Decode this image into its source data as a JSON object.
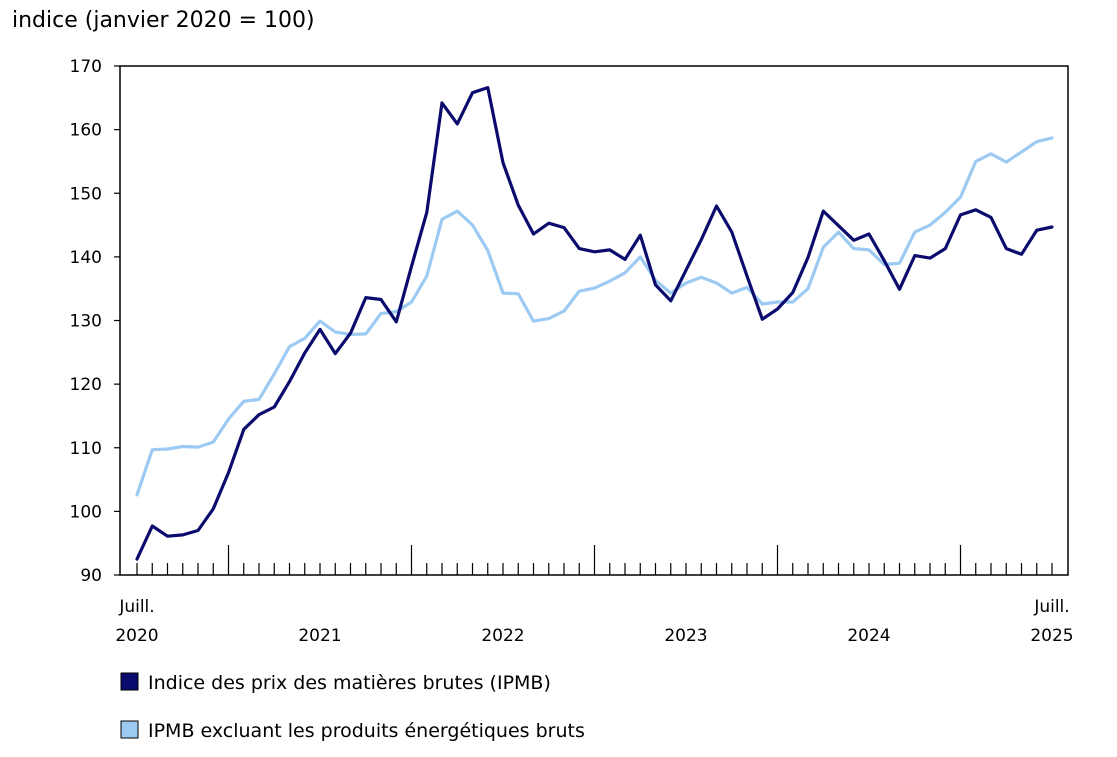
{
  "chart_data": {
    "type": "line",
    "ylabel": "indice (janvier 2020 = 100)",
    "ylim": [
      90,
      170
    ],
    "yticks": [
      90,
      100,
      110,
      120,
      130,
      140,
      150,
      160,
      170
    ],
    "x_start": "2020-07",
    "x_end": "2025-07",
    "x_labels": [
      {
        "month_index": 0,
        "line1": "Juill.",
        "line2": "2020"
      },
      {
        "month_index": 12,
        "line1": "",
        "line2": "2021"
      },
      {
        "month_index": 24,
        "line1": "",
        "line2": "2022"
      },
      {
        "month_index": 36,
        "line1": "",
        "line2": "2023"
      },
      {
        "month_index": 48,
        "line1": "",
        "line2": "2024"
      },
      {
        "month_index": 60,
        "line1": "Juill.",
        "line2": "2025"
      }
    ],
    "major_tick_indices": [
      6,
      18,
      30,
      42,
      54
    ],
    "series": [
      {
        "name": "Indice des prix des matières brutes (IPMB)",
        "color": "#0b0b6e",
        "values": [
          92.5,
          97.7,
          96.1,
          96.3,
          97.0,
          100.4,
          106.1,
          112.9,
          115.2,
          116.4,
          120.4,
          124.9,
          128.6,
          124.8,
          128.0,
          133.6,
          133.3,
          129.8,
          138.5,
          147.0,
          164.2,
          160.9,
          165.8,
          166.6,
          154.8,
          148.1,
          143.6,
          145.3,
          144.6,
          141.3,
          140.8,
          141.1,
          139.6,
          143.4,
          135.6,
          133.1,
          137.9,
          142.7,
          148.0,
          143.9,
          137.0,
          130.2,
          131.8,
          134.4,
          139.9,
          147.2,
          144.9,
          142.6,
          143.6,
          139.4,
          134.9,
          140.2,
          139.8,
          141.3,
          146.6,
          147.4,
          146.2,
          141.3,
          140.4,
          144.2,
          144.7
        ]
      },
      {
        "name": "IPMB excluant les produits énergétiques bruts",
        "color": "#9ccaf3",
        "values": [
          102.6,
          109.7,
          109.8,
          110.2,
          110.1,
          110.9,
          114.5,
          117.3,
          117.6,
          121.6,
          125.9,
          127.2,
          129.9,
          128.2,
          127.8,
          127.9,
          131.1,
          131.4,
          132.9,
          137.0,
          145.9,
          147.2,
          145.0,
          141.0,
          134.3,
          134.2,
          129.9,
          130.3,
          131.5,
          134.6,
          135.1,
          136.2,
          137.5,
          140.0,
          136.3,
          134.3,
          135.9,
          136.8,
          135.9,
          134.3,
          135.2,
          132.6,
          132.9,
          132.9,
          135.0,
          141.5,
          143.9,
          141.3,
          141.1,
          138.8,
          139.0,
          143.9,
          145.0,
          147.0,
          149.4,
          155.0,
          156.2,
          154.9,
          156.5,
          158.1,
          158.7
        ]
      }
    ],
    "legend": [
      {
        "label": "Indice des prix des matières brutes (IPMB)",
        "color": "#0b0b6e"
      },
      {
        "label": "IPMB excluant les produits énergétiques bruts",
        "color": "#9ccaf3"
      }
    ],
    "legend_position": "bottom-left",
    "grid": false
  }
}
